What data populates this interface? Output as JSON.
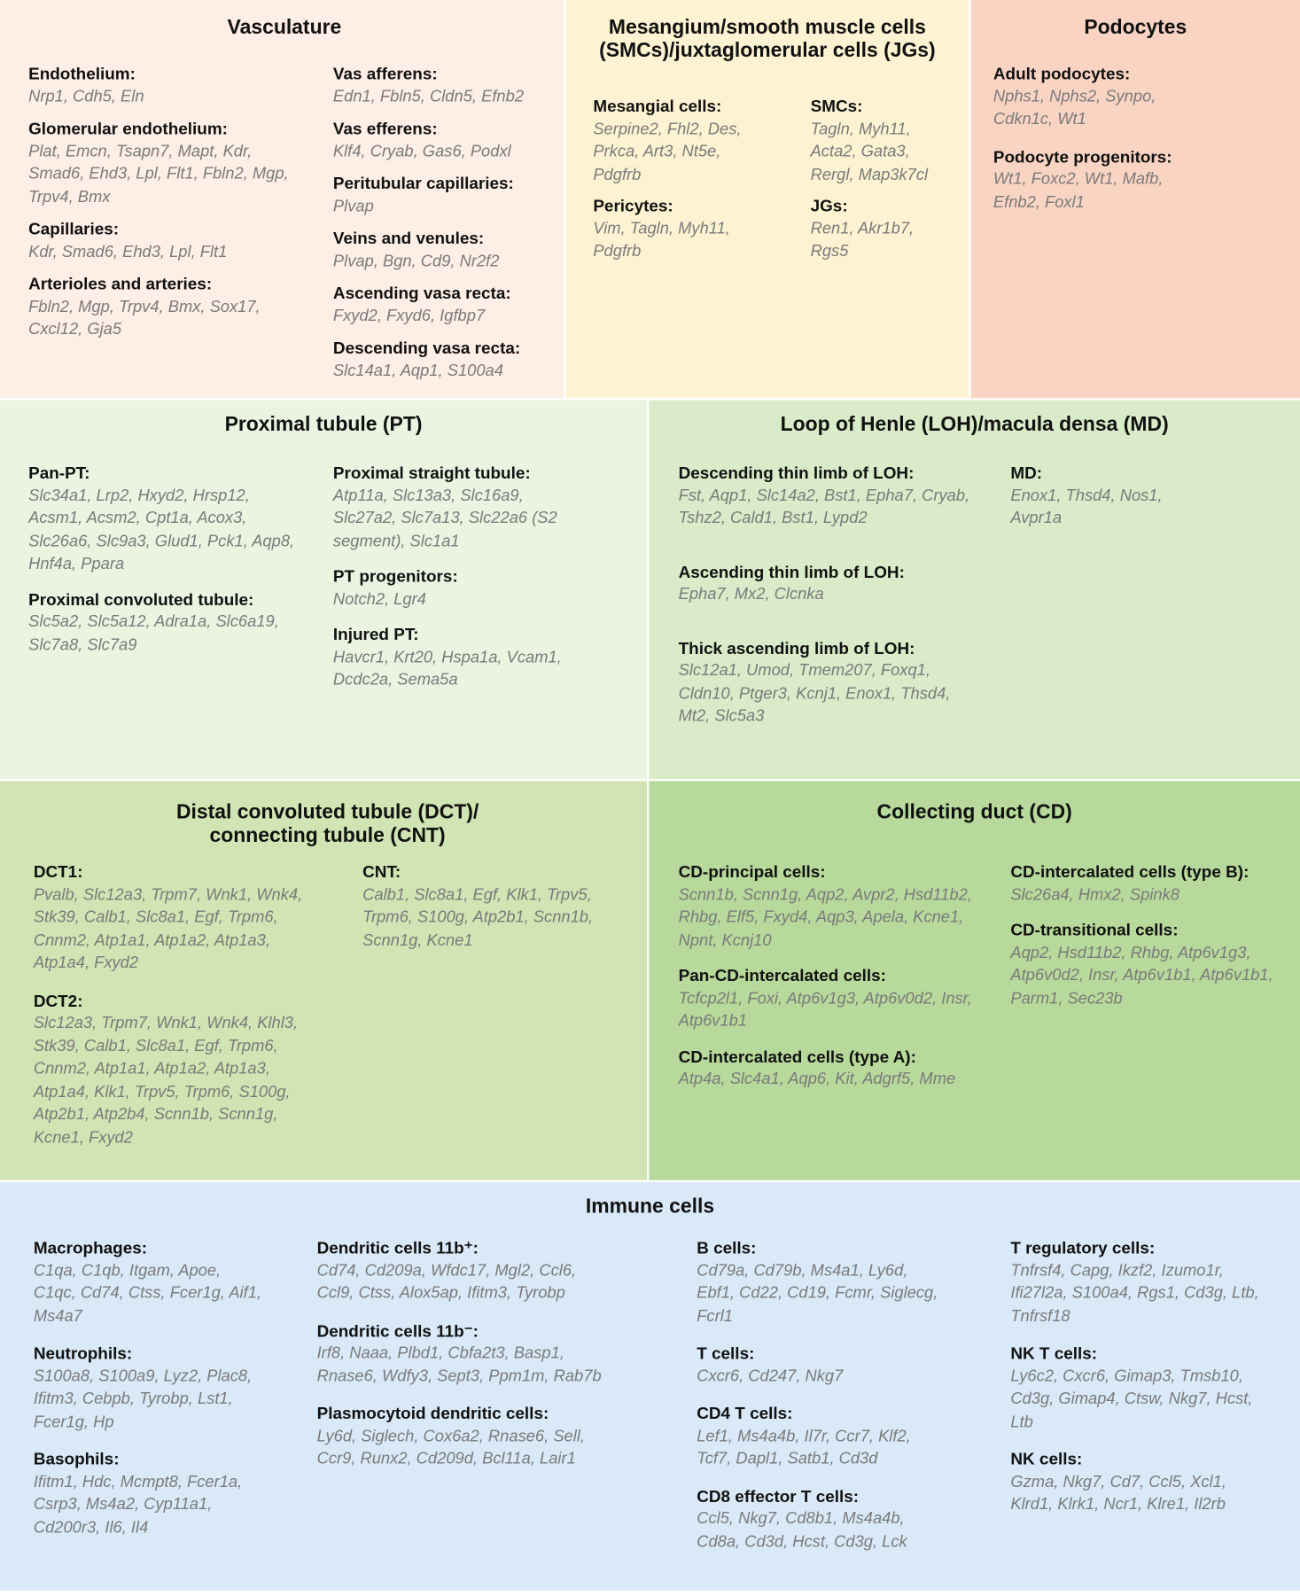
{
  "panels": [
    {
      "title": "Vasculature",
      "columns": [
        [
          {
            "heading": "Endothelium:",
            "genes": "Nrp1, Cdh5, Eln"
          },
          {
            "heading": "Glomerular endothelium:",
            "genes": "Plat, Emcn, Tsapn7, Mapt, Kdr, Smad6, Ehd3, Lpl, Flt1, Fbln2, Mgp, Trpv4, Bmx"
          },
          {
            "heading": "Capillaries:",
            "genes": "Kdr, Smad6, Ehd3, Lpl, Flt1"
          },
          {
            "heading": "Arterioles and arteries:",
            "genes": "Fbln2, Mgp, Trpv4, Bmx, Sox17, Cxcl12, Gja5"
          }
        ],
        [
          {
            "heading": "Vas afferens:",
            "genes": "Edn1, Fbln5, Cldn5, Efnb2"
          },
          {
            "heading": "Vas efferens:",
            "genes": "Klf4, Cryab, Gas6, Podxl"
          },
          {
            "heading": "Peritubular capillaries:",
            "genes": "Plvap"
          },
          {
            "heading": "Veins and venules:",
            "genes": "Plvap, Bgn, Cd9, Nr2f2"
          },
          {
            "heading": "Ascending vasa recta:",
            "genes": "Fxyd2, Fxyd6, Igfbp7"
          },
          {
            "heading": "Descending vasa recta:",
            "genes": "Slc14a1, Aqp1, S100a4"
          }
        ]
      ]
    },
    {
      "title": "Mesangium/smooth muscle cells (SMCs)/juxtaglomerular cells (JGs)",
      "columns": [
        [
          {
            "heading": "Mesangial cells:",
            "genes": "Serpine2, Fhl2, Des, Prkca, Art3, Nt5e, Pdgfrb"
          },
          {
            "heading": "Pericytes:",
            "genes": "Vim, Tagln, Myh11, Pdgfrb"
          }
        ],
        [
          {
            "heading": "SMCs:",
            "genes": "Tagln, Myh11, Acta2, Gata3, Rergl, Map3k7cl"
          },
          {
            "heading": "JGs:",
            "genes": "Ren1, Akr1b7, Rgs5"
          }
        ]
      ]
    },
    {
      "title": "Podocytes",
      "columns": [
        [
          {
            "heading": "Adult podocytes:",
            "genes": "Nphs1, Nphs2, Synpo, Cdkn1c, Wt1"
          },
          {
            "heading": "Podocyte progenitors:",
            "genes": "Wt1, Foxc2, Wt1, Mafb, Efnb2, Foxl1"
          }
        ]
      ]
    },
    {
      "title": "Proximal tubule (PT)",
      "columns": [
        [
          {
            "heading": "Pan-PT:",
            "genes": "Slc34a1, Lrp2, Hxyd2, Hrsp12, Acsm1, Acsm2, Cpt1a, Acox3, Slc26a6, Slc9a3, Glud1, Pck1, Aqp8, Hnf4a, Ppara"
          },
          {
            "heading": "Proximal convoluted tubule:",
            "genes": "Slc5a2, Slc5a12, Adra1a, Slc6a19, Slc7a8, Slc7a9"
          }
        ],
        [
          {
            "heading": "Proximal straight tubule:",
            "genes": "Atp11a, Slc13a3, Slc16a9, Slc27a2, Slc7a13, Slc22a6 (S2 segment), Slc1a1"
          },
          {
            "heading": "PT progenitors:",
            "genes": "Notch2, Lgr4"
          },
          {
            "heading": "Injured PT:",
            "genes": "Havcr1, Krt20, Hspa1a, Vcam1, Dcdc2a, Sema5a"
          }
        ]
      ]
    },
    {
      "title": "Loop of Henle (LOH)/macula densa (MD)",
      "columns": [
        [
          {
            "heading": "Descending thin limb of LOH:",
            "genes": "Fst, Aqp1, Slc14a2, Bst1, Epha7, Cryab, Tshz2, Cald1, Bst1, Lypd2"
          },
          {
            "heading": "Ascending thin limb of LOH:",
            "genes": "Epha7, Mx2, Clcnka"
          },
          {
            "heading": "Thick ascending limb of LOH:",
            "genes": "Slc12a1, Umod, Tmem207, Foxq1, Cldn10, Ptger3, Kcnj1, Enox1, Thsd4, Mt2, Slc5a3"
          }
        ],
        [
          {
            "heading": "MD:",
            "genes": "Enox1, Thsd4, Nos1, Avpr1a"
          }
        ]
      ]
    },
    {
      "title": "Distal convoluted tubule (DCT)/ connecting tubule (CNT)",
      "columns": [
        [
          {
            "heading": "DCT1:",
            "genes": "Pvalb, Slc12a3, Trpm7, Wnk1, Wnk4, Stk39, Calb1, Slc8a1, Egf, Trpm6, Cnnm2, Atp1a1, Atp1a2, Atp1a3, Atp1a4, Fxyd2"
          },
          {
            "heading": "DCT2:",
            "genes": "Slc12a3, Trpm7, Wnk1, Wnk4, Klhl3, Stk39, Calb1, Slc8a1, Egf, Trpm6, Cnnm2, Atp1a1, Atp1a2, Atp1a3, Atp1a4, Klk1, Trpv5, Trpm6, S100g, Atp2b1, Atp2b4, Scnn1b, Scnn1g, Kcne1, Fxyd2"
          }
        ],
        [
          {
            "heading": "CNT:",
            "genes": "Calb1, Slc8a1, Egf, Klk1, Trpv5, Trpm6, S100g, Atp2b1, Scnn1b, Scnn1g, Kcne1"
          }
        ]
      ]
    },
    {
      "title": "Collecting duct (CD)",
      "columns": [
        [
          {
            "heading": "CD-principal cells:",
            "genes": "Scnn1b, Scnn1g, Aqp2, Avpr2, Hsd11b2, Rhbg, Elf5, Fxyd4, Aqp3, Apela, Kcne1, Npnt, Kcnj10"
          },
          {
            "heading": "Pan-CD-intercalated cells:",
            "genes": "Tcfcp2l1, Foxi, Atp6v1g3, Atp6v0d2, Insr, Atp6v1b1"
          },
          {
            "heading": "CD-intercalated cells (type A):",
            "genes": "Atp4a, Slc4a1, Aqp6, Kit, Adgrf5, Mme"
          }
        ],
        [
          {
            "heading": "CD-intercalated cells (type B):",
            "genes": "Slc26a4, Hmx2, Spink8"
          },
          {
            "heading": "CD-transitional cells:",
            "genes": "Aqp2, Hsd11b2, Rhbg, Atp6v1g3, Atp6v0d2, Insr, Atp6v1b1, Atp6v1b1, Parm1, Sec23b"
          }
        ]
      ]
    },
    {
      "title": "Immune cells",
      "columns": [
        [
          {
            "heading": "Macrophages:",
            "genes": "C1qa, C1qb, Itgam, Apoe, C1qc, Cd74, Ctss, Fcer1g, Aif1, Ms4a7"
          },
          {
            "heading": "Neutrophils:",
            "genes": "S100a8, S100a9, Lyz2, Plac8, Ifitm3, Cebpb, Tyrobp, Lst1, Fcer1g, Hp"
          },
          {
            "heading": "Basophils:",
            "genes": "Ifitm1, Hdc, Mcmpt8, Fcer1a, Csrp3, Ms4a2, Cyp11a1, Cd200r3, Il6, Il4"
          }
        ],
        [
          {
            "heading": "Dendritic cells 11b⁺:",
            "genes": "Cd74, Cd209a, Wfdc17, Mgl2, Ccl6, Ccl9, Ctss, Alox5ap, Ifitm3, Tyrobp"
          },
          {
            "heading": "Dendritic cells 11b⁻:",
            "genes": "Irf8, Naaa, Plbd1, Cbfa2t3, Basp1, Rnase6, Wdfy3, Sept3, Ppm1m, Rab7b"
          },
          {
            "heading": "Plasmocytoid dendritic cells:",
            "genes": "Ly6d, Siglech, Cox6a2, Rnase6, Sell, Ccr9, Runx2, Cd209d, Bcl11a, Lair1"
          }
        ],
        [
          {
            "heading": "B cells:",
            "genes": "Cd79a, Cd79b, Ms4a1, Ly6d, Ebf1, Cd22, Cd19, Fcmr, Siglecg, Fcrl1"
          },
          {
            "heading": "T cells:",
            "genes": "Cxcr6, Cd247, Nkg7"
          },
          {
            "heading": "CD4 T cells:",
            "genes": "Lef1, Ms4a4b, Il7r, Ccr7, Klf2, Tcf7, Dapl1, Satb1, Cd3d"
          },
          {
            "heading": "CD8 effector T cells:",
            "genes": "Ccl5, Nkg7, Cd8b1, Ms4a4b, Cd8a, Cd3d, Hcst, Cd3g, Lck"
          }
        ],
        [
          {
            "heading": "T regulatory cells:",
            "genes": "Tnfrsf4, Capg, Ikzf2, Izumo1r, Ifi27l2a, S100a4, Rgs1, Cd3g, Ltb, Tnfrsf18"
          },
          {
            "heading": "NK T cells:",
            "genes": "Ly6c2, Cxcr6, Gimap3, Tmsb10, Cd3g, Gimap4, Ctsw, Nkg7, Hcst, Ltb"
          },
          {
            "heading": "NK cells:",
            "genes": "Gzma, Nkg7, Cd7, Ccl5, Xcl1, Klrd1, Klrk1, Ncr1, Klre1, Il2rb"
          }
        ]
      ]
    }
  ]
}
